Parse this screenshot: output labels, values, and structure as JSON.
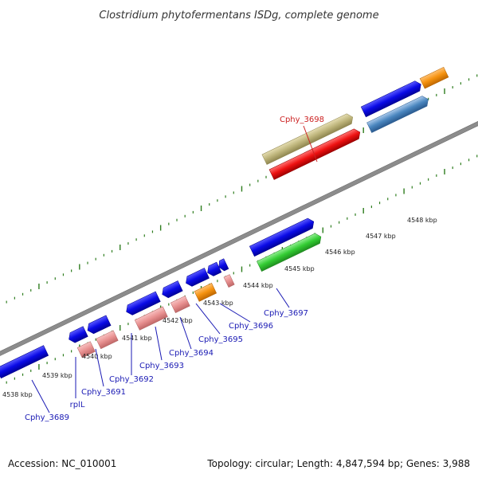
{
  "title": "Clostridium phytofermentans ISDg, complete genome",
  "footer": {
    "accession": "Accession: NC_010001",
    "summary": "Topology: circular; Length: 4,847,594 bp; Genes: 3,988"
  },
  "scale_labels": [
    "4538 kbp",
    "4539 kbp",
    "4540 kbp",
    "4541 kbp",
    "4542 kbp",
    "4543 kbp",
    "4544 kbp",
    "4545 kbp",
    "4546 kbp",
    "4547 kbp",
    "4548 kbp"
  ],
  "gene_labels": [
    "Cphy_3689",
    "rplL",
    "Cphy_3691",
    "Cphy_3692",
    "Cphy_3693",
    "Cphy_3694",
    "Cphy_3695",
    "Cphy_3696",
    "Cphy_3697",
    "Cphy_3698"
  ],
  "colors": {
    "backbone": "#8c8c8c",
    "tick_green": "#2e7d1e",
    "cds_blue": "#0a0ae6",
    "rna_pink": "#e89090",
    "orange": "#f5920f",
    "green": "#33cc33",
    "olive": "#bdb47a",
    "red": "#ee1111",
    "steel": "#4a86bf",
    "label_blue": "#1a1ab4",
    "label_red": "#cc2222"
  }
}
